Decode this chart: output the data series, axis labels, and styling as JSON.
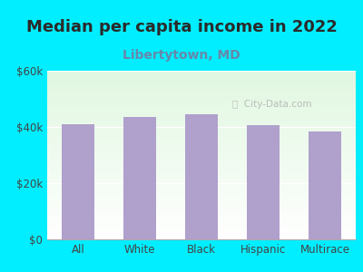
{
  "title": "Median per capita income in 2022",
  "subtitle": "Libertytown, MD",
  "categories": [
    "All",
    "White",
    "Black",
    "Hispanic",
    "Multirace"
  ],
  "values": [
    41000,
    43500,
    44500,
    40500,
    38500
  ],
  "bar_color": "#b0a0cc",
  "background_outer": "#00eeff",
  "title_color": "#2a2a2a",
  "subtitle_color": "#6688aa",
  "tick_color": "#444444",
  "ylim": [
    0,
    60000
  ],
  "yticks": [
    0,
    20000,
    40000,
    60000
  ],
  "ytick_labels": [
    "$0",
    "$20k",
    "$40k",
    "$60k"
  ],
  "watermark": "City-Data.com",
  "title_fontsize": 13,
  "subtitle_fontsize": 10,
  "tick_fontsize": 8.5
}
